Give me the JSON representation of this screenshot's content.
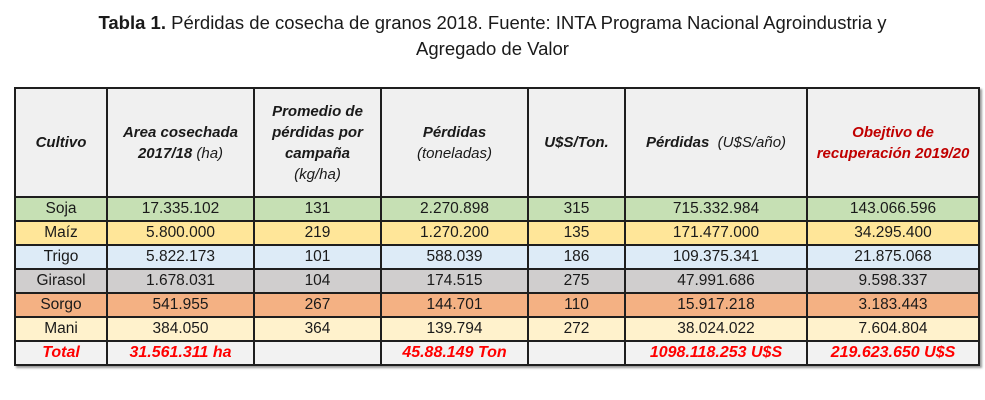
{
  "title": {
    "label": "Tabla 1.",
    "line1": " Pérdidas de cosecha de granos 2018. Fuente: INTA Programa Nacional Agroindustria y",
    "line2": "Agregado de Valor"
  },
  "headers": {
    "cultivo": "Cultivo",
    "area_main": "Area cosechada 2017/18",
    "area_unit": "(ha)",
    "promedio_main": "Promedio de pérdidas por campaña",
    "promedio_unit": "(kg/ha)",
    "perdidas_main": "Pérdidas",
    "perdidas_unit": "(toneladas)",
    "uss_ton": "U$S/Ton.",
    "perdidas_uss_main": "Pérdidas",
    "perdidas_uss_unit": "(U$S/año)",
    "objetivo": "Obejtivo de recuperación 2019/20"
  },
  "rows": [
    {
      "cultivo": "Soja",
      "area": "17.335.102",
      "promedio": "131",
      "perdidas": "2.270.898",
      "uss_ton": "315",
      "perdidas_uss": "715.332.984",
      "objetivo": "143.066.596"
    },
    {
      "cultivo": "Maíz",
      "area": "5.800.000",
      "promedio": "219",
      "perdidas": "1.270.200",
      "uss_ton": "135",
      "perdidas_uss": "171.477.000",
      "objetivo": "34.295.400"
    },
    {
      "cultivo": "Trigo",
      "area": "5.822.173",
      "promedio": "101",
      "perdidas": "588.039",
      "uss_ton": "186",
      "perdidas_uss": "109.375.341",
      "objetivo": "21.875.068"
    },
    {
      "cultivo": "Girasol",
      "area": "1.678.031",
      "promedio": "104",
      "perdidas": "174.515",
      "uss_ton": "275",
      "perdidas_uss": "47.991.686",
      "objetivo": "9.598.337"
    },
    {
      "cultivo": "Sorgo",
      "area": "541.955",
      "promedio": "267",
      "perdidas": "144.701",
      "uss_ton": "110",
      "perdidas_uss": "15.917.218",
      "objetivo": "3.183.443"
    },
    {
      "cultivo": "Mani",
      "area": "384.050",
      "promedio": "364",
      "perdidas": "139.794",
      "uss_ton": "272",
      "perdidas_uss": "38.024.022",
      "objetivo": "7.604.804"
    }
  ],
  "total": {
    "label": "Total",
    "area": "31.561.311 ha",
    "promedio": "",
    "perdidas": "45.88.149 Ton",
    "uss_ton": "",
    "perdidas_uss": "1098.118.253 U$S",
    "objetivo": "219.623.650 U$S"
  },
  "colors": {
    "soja": "#c6e0b4",
    "maiz": "#ffe699",
    "trigo": "#ddebf7",
    "girasol": "#d0cece",
    "sorgo": "#f4b183",
    "mani": "#fff2cc",
    "highlight_red": "#ff0000"
  }
}
